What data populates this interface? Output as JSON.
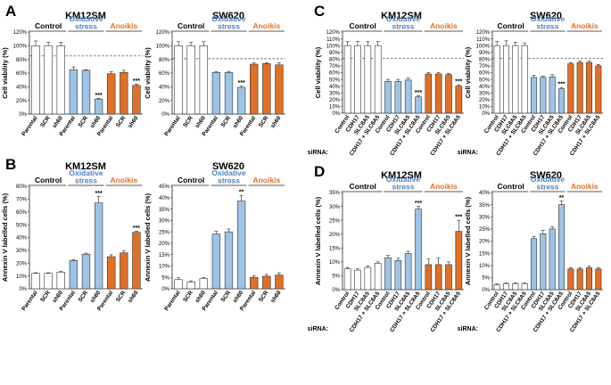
{
  "colors": {
    "control": "#ffffff",
    "oxidative": "#9dc3e6",
    "anoikis": "#e07026",
    "oxidative_label": "#4f81bd",
    "anoikis_label": "#e07026"
  },
  "chart_data": [
    {
      "panel": "A",
      "title": "KM12SM",
      "type": "bar",
      "ylabel": "Cell viability (%)",
      "ylim": [
        0,
        120
      ],
      "yticks": [
        "0%",
        "20%",
        "40%",
        "60%",
        "80%",
        "100%",
        "120%"
      ],
      "reference_line": 85,
      "categories": [
        "Parental",
        "SCR",
        "sh60",
        "Parental",
        "SCR",
        "sh60",
        "Parental",
        "SCR",
        "sh60"
      ],
      "groups": [
        "control",
        "control",
        "control",
        "oxidative",
        "oxidative",
        "oxidative",
        "anoikis",
        "anoikis",
        "anoikis"
      ],
      "values": [
        100,
        100,
        100,
        65,
        64,
        22,
        59,
        61,
        42
      ],
      "errors": [
        7,
        5,
        5,
        4,
        1,
        1,
        3,
        3,
        2
      ],
      "annotations": [
        "",
        "",
        "",
        "",
        "",
        "***",
        "",
        "",
        "***"
      ],
      "group_labels": [
        "Control",
        "Oxidative stress",
        "Anoikis"
      ]
    },
    {
      "panel": "A2",
      "title": "SW620",
      "type": "bar",
      "ylabel": "Cell viability (%)",
      "ylim": [
        0,
        120
      ],
      "yticks": [
        "0%",
        "20%",
        "40%",
        "60%",
        "80%",
        "100%",
        "120%"
      ],
      "reference_line": 81,
      "categories": [
        "Parental",
        "SCR",
        "sh60",
        "Parental",
        "SCR",
        "sh60",
        "Parental",
        "SCR",
        "sh60"
      ],
      "groups": [
        "control",
        "control",
        "control",
        "oxidative",
        "oxidative",
        "oxidative",
        "anoikis",
        "anoikis",
        "anoikis"
      ],
      "values": [
        100,
        100,
        100,
        61,
        61,
        39,
        73,
        74,
        72
      ],
      "errors": [
        6,
        5,
        6,
        1,
        1,
        2,
        2,
        1,
        3
      ],
      "annotations": [
        "",
        "",
        "",
        "",
        "",
        "***",
        "",
        "",
        ""
      ],
      "group_labels": [
        "Control",
        "Oxidative stress",
        "Anoikis"
      ]
    },
    {
      "panel": "C",
      "title": "KM12SM",
      "type": "bar",
      "ylabel": "Cell viability (%)",
      "ylim": [
        0,
        120
      ],
      "yticks": [
        "0%",
        "10%",
        "20%",
        "30%",
        "40%",
        "50%",
        "60%",
        "70%",
        "80%",
        "90%",
        "100%",
        "110%",
        "120%"
      ],
      "reference_line": 81,
      "x_prefix": "siRNA:",
      "categories": [
        "Control",
        "CDH17",
        "SLC8A5",
        "CDH17 + SLC8A5",
        "Control",
        "CDH17",
        "SLC8A5",
        "CDH17 + SLC8A5",
        "Control",
        "CDH17",
        "SLC8A5",
        "CDH17 + SLC8A5"
      ],
      "groups": [
        "control",
        "control",
        "control",
        "control",
        "oxidative",
        "oxidative",
        "oxidative",
        "oxidative",
        "anoikis",
        "anoikis",
        "anoikis",
        "anoikis"
      ],
      "values": [
        100,
        100,
        100,
        100,
        47,
        47,
        49,
        24,
        58,
        58,
        57,
        40
      ],
      "errors": [
        6,
        6,
        6,
        6,
        3,
        3,
        3,
        2,
        2,
        2,
        2,
        2
      ],
      "annotations": [
        "",
        "",
        "",
        "",
        "",
        "",
        "",
        "***",
        "",
        "",
        "",
        "***"
      ],
      "group_labels": [
        "Control",
        "Oxidative stress",
        "Anoikis"
      ]
    },
    {
      "panel": "C2",
      "title": "SW620",
      "type": "bar",
      "ylabel": "Cell viability (%)",
      "ylim": [
        0,
        120
      ],
      "yticks": [
        "0%",
        "10%",
        "20%",
        "30%",
        "40%",
        "50%",
        "60%",
        "70%",
        "80%",
        "90%",
        "100%",
        "110%",
        "120%"
      ],
      "reference_line": 81,
      "x_prefix": "siRNA:",
      "categories": [
        "Control",
        "CDH17",
        "SLC8A5",
        "CDH17 + SLC8A5",
        "Control",
        "CDH17",
        "SLC8A5",
        "CDH17 + SLC8A5",
        "Control",
        "CDH17",
        "SLC8A5",
        "CDH17 + SLC8A5"
      ],
      "groups": [
        "control",
        "control",
        "control",
        "control",
        "oxidative",
        "oxidative",
        "oxidative",
        "oxidative",
        "anoikis",
        "anoikis",
        "anoikis",
        "anoikis"
      ],
      "values": [
        100,
        100,
        100,
        100,
        53,
        53,
        54,
        36,
        73,
        75,
        75,
        70
      ],
      "errors": [
        6,
        7,
        5,
        4,
        3,
        2,
        3,
        2,
        2,
        2,
        2,
        2
      ],
      "annotations": [
        "",
        "",
        "",
        "",
        "",
        "",
        "",
        "***",
        "",
        "",
        "",
        ""
      ],
      "group_labels": [
        "Control",
        "Oxidative stress",
        "Anoikis"
      ]
    },
    {
      "panel": "B",
      "title": "KM12SM",
      "type": "bar",
      "ylabel": "Annexin V labelled cells (%)",
      "ylim": [
        0,
        80
      ],
      "yticks": [
        "0%",
        "10%",
        "20%",
        "30%",
        "40%",
        "50%",
        "60%",
        "70%",
        "80%"
      ],
      "categories": [
        "Parental",
        "SCR",
        "sh60",
        "Parental",
        "SCR",
        "sh60",
        "Parental",
        "SCR",
        "sh60"
      ],
      "groups": [
        "control",
        "control",
        "control",
        "oxidative",
        "oxidative",
        "oxidative",
        "anoikis",
        "anoikis",
        "anoikis"
      ],
      "values": [
        12,
        12,
        13,
        22,
        27,
        67,
        25,
        28,
        44
      ],
      "errors": [
        0.5,
        0.5,
        0.5,
        0.8,
        0.8,
        5,
        1.5,
        1.5,
        1
      ],
      "annotations": [
        "",
        "",
        "",
        "",
        "",
        "***",
        "",
        "",
        "***"
      ],
      "group_labels": [
        "Control",
        "Oxidative stress",
        "Anoikis"
      ]
    },
    {
      "panel": "B2",
      "title": "SW620",
      "type": "bar",
      "ylabel": "Annexin V labelled cells (%)",
      "ylim": [
        0,
        45
      ],
      "yticks": [
        "0%",
        "5%",
        "10%",
        "15%",
        "20%",
        "25%",
        "30%",
        "35%",
        "40%",
        "45%"
      ],
      "categories": [
        "Parental",
        "SCR",
        "sh60",
        "Parental",
        "SCR",
        "sh60",
        "Parental",
        "SCR",
        "sh60"
      ],
      "groups": [
        "control",
        "control",
        "control",
        "oxidative",
        "oxidative",
        "oxidative",
        "anoikis",
        "anoikis",
        "anoikis"
      ],
      "values": [
        4,
        3,
        4.5,
        24,
        25,
        38.5,
        5,
        5.5,
        6
      ],
      "errors": [
        0.8,
        0.5,
        0.5,
        1.2,
        1.2,
        2.5,
        0.8,
        0.8,
        1
      ],
      "annotations": [
        "",
        "",
        "",
        "",
        "",
        "**",
        "",
        "",
        ""
      ],
      "group_labels": [
        "Control",
        "Oxidative stress",
        "Anoikis"
      ]
    },
    {
      "panel": "D",
      "title": "KM12SM",
      "type": "bar",
      "ylabel": "Annexin V labelled  cells (%)",
      "ylim": [
        0,
        35
      ],
      "yticks": [
        "0%",
        "5%",
        "10%",
        "15%",
        "20%",
        "25%",
        "30%",
        "35%"
      ],
      "x_prefix": "siRNA:",
      "categories": [
        "Control",
        "CDH17",
        "SLC8A5",
        "CDH17 + SLC8A5",
        "Control",
        "CDH17",
        "SLC8A5",
        "CDH17 + SLC8A5",
        "Control",
        "CDH17",
        "SLC8A5",
        "CDH17 + SLC8A5"
      ],
      "groups": [
        "control",
        "control",
        "control",
        "control",
        "oxidative",
        "oxidative",
        "oxidative",
        "oxidative",
        "anoikis",
        "anoikis",
        "anoikis",
        "anoikis"
      ],
      "values": [
        7.5,
        7,
        8,
        9.5,
        11.5,
        10.5,
        13,
        29,
        9,
        9,
        9,
        21
      ],
      "errors": [
        0.5,
        0.5,
        0.5,
        0.5,
        0.8,
        0.8,
        0.8,
        1,
        2,
        2.5,
        1,
        4
      ],
      "annotations": [
        "",
        "",
        "",
        "",
        "",
        "",
        "",
        "***",
        "",
        "",
        "",
        "***"
      ],
      "group_labels": [
        "Control",
        "Oxidative stress",
        "Anoikis"
      ]
    },
    {
      "panel": "D2",
      "title": "SW620",
      "type": "bar",
      "ylabel": "Annexin V labelled cells (%)",
      "ylim": [
        0,
        40
      ],
      "yticks": [
        "0%",
        "5%",
        "10%",
        "15%",
        "20%",
        "25%",
        "30%",
        "35%",
        "40%"
      ],
      "x_prefix": "siRNA:",
      "categories": [
        "Control",
        "CDH17",
        "SLC8A5",
        "CDH17 + SLC8A5",
        "Control",
        "CDH17",
        "SLC8A5",
        "CDH17 + SLC8A5",
        "Control",
        "CDH17",
        "SLC8A5",
        "CDH17 + SLC8A5"
      ],
      "groups": [
        "control",
        "control",
        "control",
        "control",
        "oxidative",
        "oxidative",
        "oxidative",
        "oxidative",
        "anoikis",
        "anoikis",
        "anoikis",
        "anoikis"
      ],
      "values": [
        2,
        2.5,
        2.5,
        2.5,
        21,
        23,
        25,
        35,
        8.5,
        8.5,
        9,
        8.5
      ],
      "errors": [
        0.3,
        0.3,
        0.3,
        0.3,
        0.8,
        1.5,
        0.8,
        1.5,
        0.6,
        0.6,
        0.8,
        0.6
      ],
      "annotations": [
        "",
        "",
        "",
        "",
        "",
        "",
        "",
        "**",
        "",
        "",
        "",
        ""
      ],
      "group_labels": [
        "Control",
        "Oxidative stress",
        "Anoikis"
      ]
    }
  ]
}
